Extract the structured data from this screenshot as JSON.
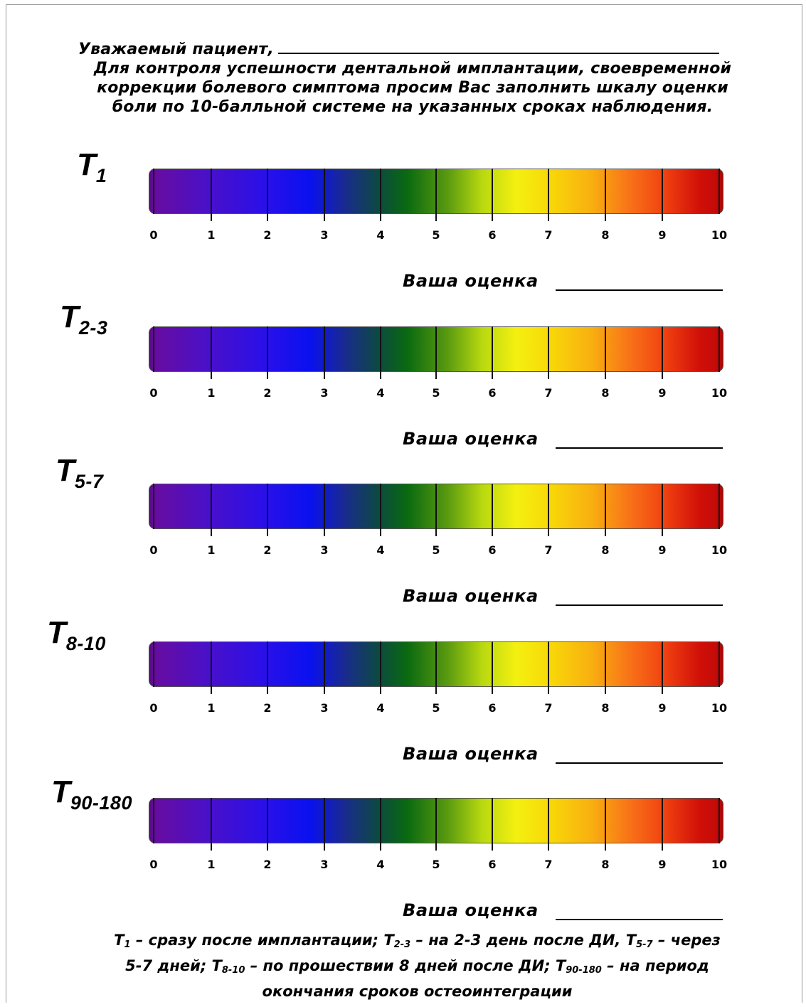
{
  "intro": {
    "greeting": "Уважаемый пациент,",
    "line2": "Для контроля успешности дентальной имплантации, своевременной",
    "line3": "коррекции болевого симптома просим Вас заполнить шкалу оценки",
    "line4": "боли по 10-балльной системе на указанных сроках наблюдения."
  },
  "scales": [
    {
      "letter": "T",
      "sub": "1",
      "score_label": "Ваша оценка"
    },
    {
      "letter": "T",
      "sub": "2-3",
      "score_label": "Ваша оценка"
    },
    {
      "letter": "T",
      "sub": "5-7",
      "score_label": "Ваша оценка"
    },
    {
      "letter": "T",
      "sub": "8-10",
      "score_label": "Ваша оценка"
    },
    {
      "letter": "T",
      "sub": "90-180",
      "score_label": "Ваша оценка"
    }
  ],
  "scale_numbers": [
    "0",
    "1",
    "2",
    "3",
    "4",
    "5",
    "6",
    "7",
    "8",
    "9",
    "10"
  ],
  "colors": {
    "gradient": [
      "#6a0c9c",
      "#2a10e8",
      "#0a10f0",
      "#0a6a10",
      "#f4f010",
      "#f8b010",
      "#f04010",
      "#c00808"
    ]
  },
  "footer": {
    "t1": "T",
    "t1_sub": "1",
    "t1_text": " – сразу после имплантации; ",
    "t23": "T",
    "t23_sub": "2-3",
    "t23_text": " – на 2-3 день после ДИ, ",
    "t57": "T",
    "t57_sub": "5-7",
    "t57_text": " – через",
    "line2_start": "5-7 дней; ",
    "t810": "T",
    "t810_sub": "8-10",
    "t810_text": " – по прошествии 8 дней после ДИ; ",
    "t90": "T",
    "t90_sub": "90-180",
    "t90_text": " – на период",
    "line3": "окончания сроков остеоинтеграции"
  }
}
